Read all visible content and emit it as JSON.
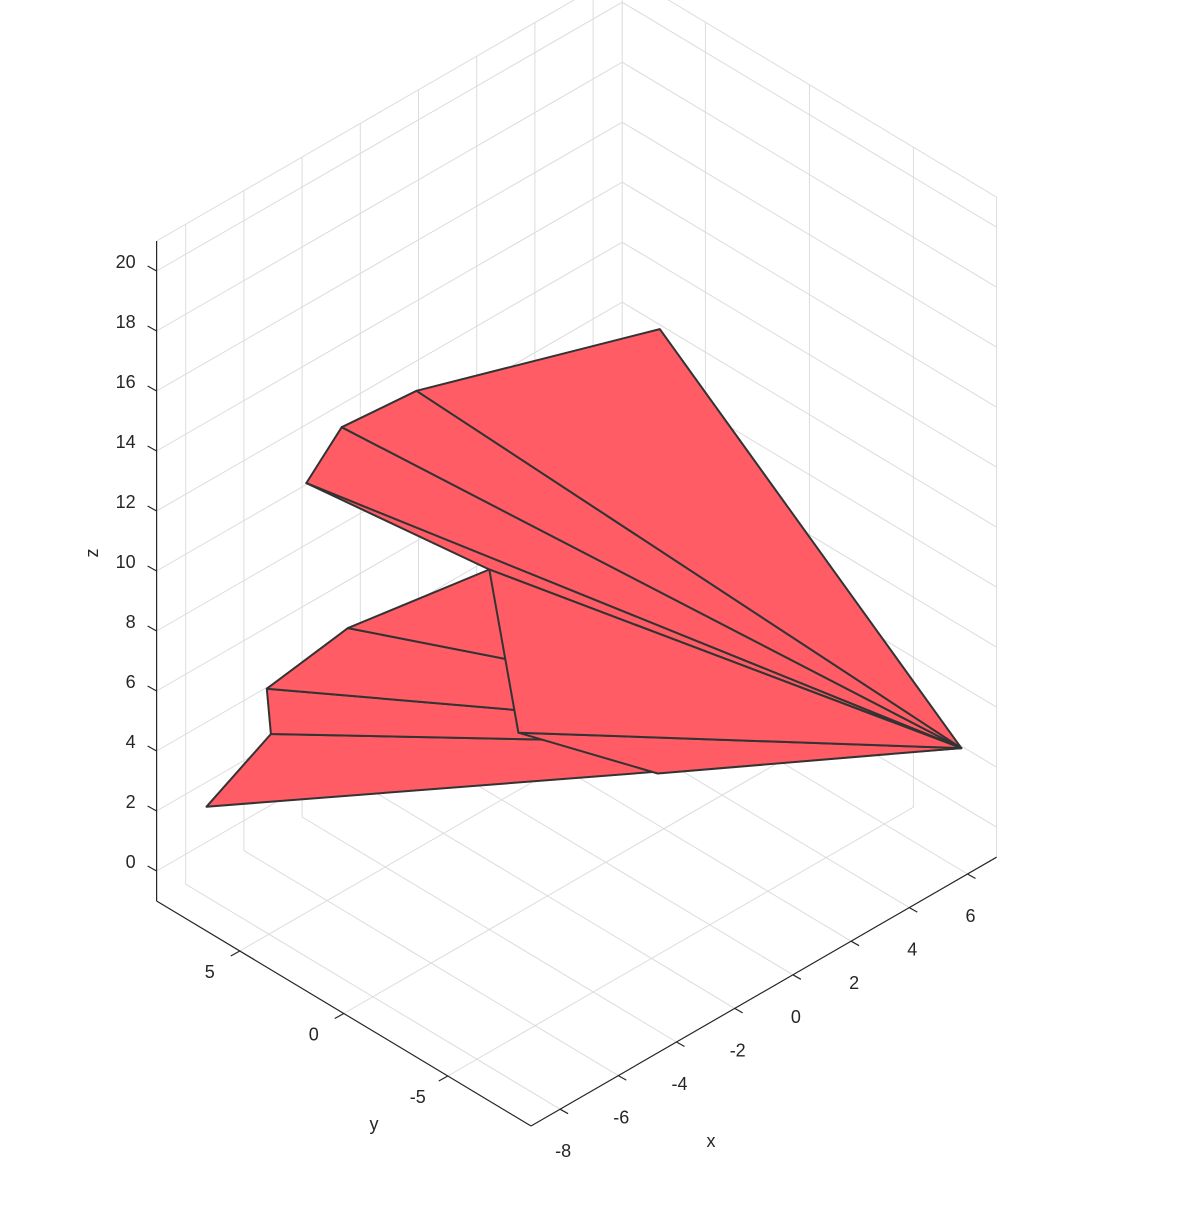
{
  "chart_data": {
    "type": "surface-3d",
    "title": "",
    "xlabel": "x",
    "ylabel": "y",
    "zlabel": "z",
    "xlim": [
      -9,
      7
    ],
    "ylim": [
      -9,
      9
    ],
    "zlim": [
      -1,
      21
    ],
    "x_ticks": [
      -8,
      -6,
      -4,
      -2,
      0,
      2,
      4,
      6
    ],
    "y_ticks": [
      -5,
      0,
      5
    ],
    "z_ticks": [
      0,
      2,
      4,
      6,
      8,
      10,
      12,
      14,
      16,
      18,
      20
    ],
    "grid": true,
    "face_color": "#ff5c66",
    "edge_color": "#333333",
    "vertices_xyz": [
      [
        -8,
        8,
        2
      ],
      [
        6.5,
        -8,
        2.5
      ],
      [
        -1,
        -4,
        19
      ],
      [
        -7,
        6.5,
        6
      ],
      [
        -6,
        6,
        12.5
      ],
      [
        -5.5,
        5,
        14.5
      ],
      [
        -4,
        3.5,
        15.5
      ],
      [
        -4,
        0,
        11
      ],
      [
        -6,
        4,
        8.5
      ],
      [
        -3,
        0,
        5
      ],
      [
        0,
        -2.5,
        3
      ],
      [
        -6.5,
        7,
        4
      ]
    ],
    "faces": [
      [
        0,
        11,
        1
      ],
      [
        11,
        3,
        1
      ],
      [
        3,
        8,
        1
      ],
      [
        8,
        7,
        1
      ],
      [
        7,
        4,
        1
      ],
      [
        4,
        5,
        1
      ],
      [
        5,
        6,
        1
      ],
      [
        6,
        2,
        1
      ],
      [
        7,
        9,
        1
      ],
      [
        9,
        10,
        1
      ]
    ]
  }
}
